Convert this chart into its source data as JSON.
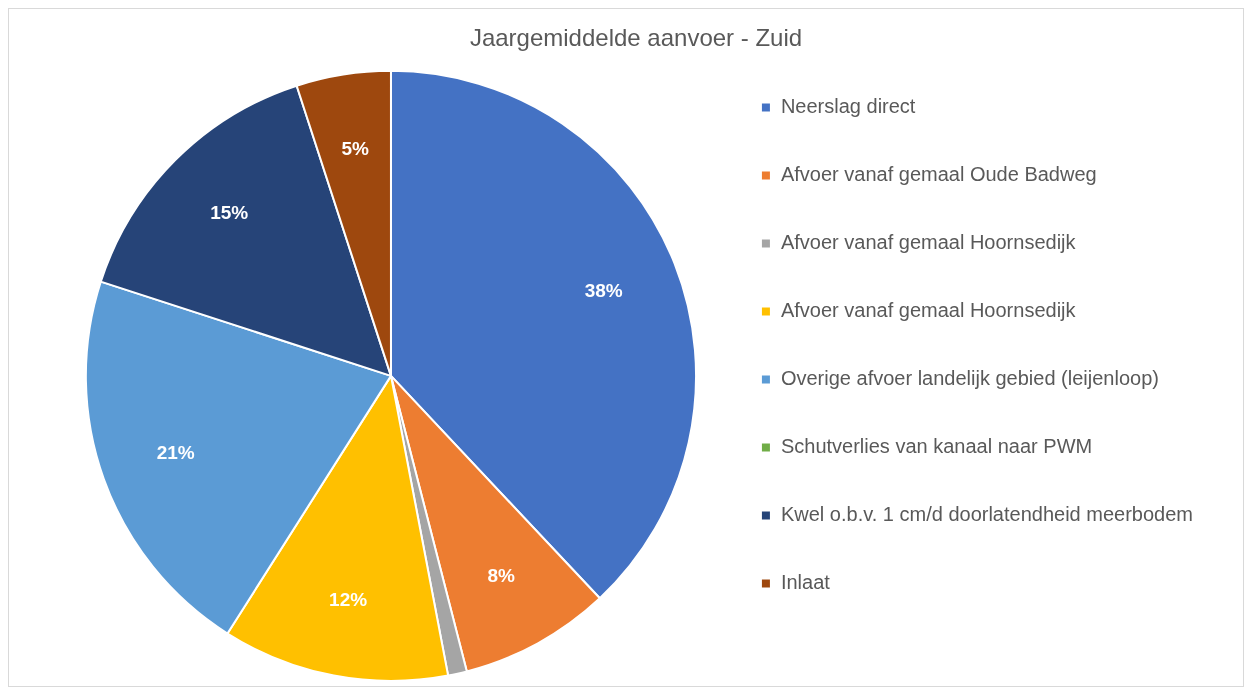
{
  "chart_data": {
    "type": "pie",
    "title": "Jaargemiddelde aanvoer - Zuid",
    "categories": [
      "Neerslag direct",
      "Afvoer vanaf gemaal Oude Badweg",
      "Afvoer vanaf gemaal Hoornsedijk",
      "Afvoer vanaf gemaal Hoornsedijk",
      "Overige afvoer landelijk gebied (leijenloop)",
      "Schutverlies van kanaal naar PWM",
      "Kwel o.b.v. 1 cm/d doorlatendheid meerbodem",
      "Inlaat"
    ],
    "values": [
      38,
      8,
      1,
      12,
      21,
      0,
      15,
      5
    ],
    "colors": [
      "#4472c4",
      "#ed7d31",
      "#a5a5a5",
      "#ffc000",
      "#5b9bd5",
      "#70ad47",
      "#264478",
      "#9e480e"
    ],
    "value_labels": [
      "38%",
      "8%",
      null,
      "12%",
      "21%",
      null,
      "15%",
      "5%"
    ],
    "legend": "right"
  }
}
